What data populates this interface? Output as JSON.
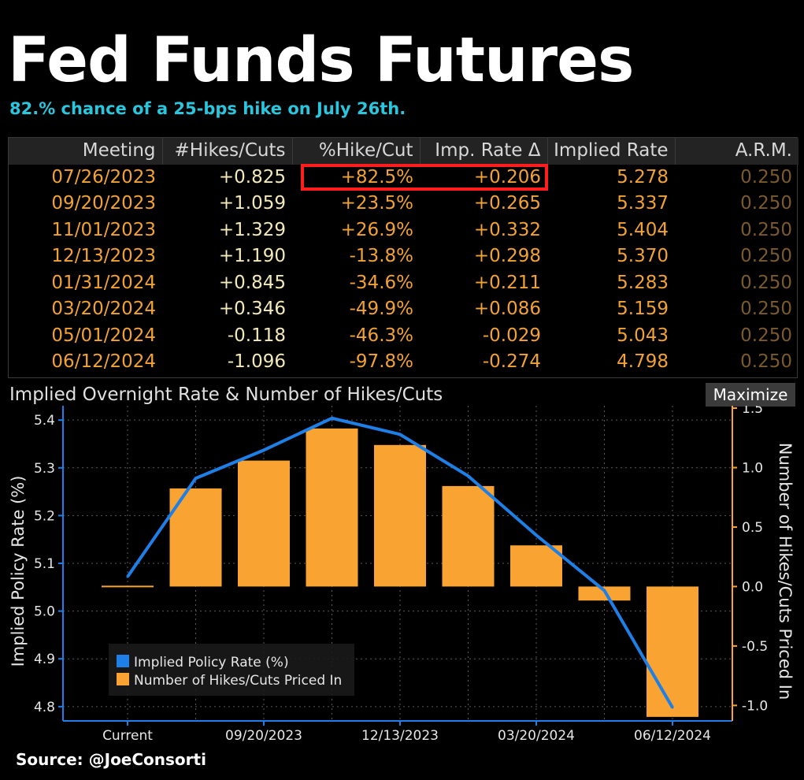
{
  "header": {
    "title": "Fed Funds Futures",
    "subtitle": "82.% chance of a 25-bps hike on July 26th."
  },
  "table": {
    "columns": [
      "Meeting",
      "#Hikes/Cuts",
      "%Hike/Cut",
      "Imp. Rate Δ",
      "Implied Rate",
      "A.R.M."
    ],
    "rows": [
      [
        "07/26/2023",
        "+0.825",
        "+82.5%",
        "+0.206",
        "5.278",
        "0.250"
      ],
      [
        "09/20/2023",
        "+1.059",
        "+23.5%",
        "+0.265",
        "5.337",
        "0.250"
      ],
      [
        "11/01/2023",
        "+1.329",
        "+26.9%",
        "+0.332",
        "5.404",
        "0.250"
      ],
      [
        "12/13/2023",
        "+1.190",
        "-13.8%",
        "+0.298",
        "5.370",
        "0.250"
      ],
      [
        "01/31/2024",
        "+0.845",
        "-34.6%",
        "+0.211",
        "5.283",
        "0.250"
      ],
      [
        "03/20/2024",
        "+0.346",
        "-49.9%",
        "+0.086",
        "5.159",
        "0.250"
      ],
      [
        "05/01/2024",
        "-0.118",
        "-46.3%",
        "-0.029",
        "5.043",
        "0.250"
      ],
      [
        "06/12/2024",
        "-1.096",
        "-97.8%",
        "-0.274",
        "4.798",
        "0.250"
      ]
    ]
  },
  "chart_panel": {
    "title": "Implied Overnight Rate & Number of Hikes/Cuts",
    "maximize_label": "Maximize"
  },
  "chart_data": {
    "type": "bar",
    "categories": [
      "Current",
      "07/26/2023",
      "09/20/2023",
      "11/01/2023",
      "12/13/2023",
      "01/31/2024",
      "03/20/2024",
      "05/01/2024",
      "06/12/2024"
    ],
    "x_tick_labels": [
      "Current",
      "09/20/2023",
      "12/13/2023",
      "03/20/2024",
      "06/12/2024"
    ],
    "series": [
      {
        "name": "Implied Policy Rate (%)",
        "type": "line",
        "axis": "left",
        "color": "#1e7fe6",
        "values": [
          5.072,
          5.278,
          5.337,
          5.404,
          5.37,
          5.283,
          5.159,
          5.043,
          4.798
        ]
      },
      {
        "name": "Number of Hikes/Cuts Priced In",
        "type": "bar",
        "axis": "right",
        "color": "#f9a332",
        "values": [
          0.0,
          0.825,
          1.059,
          1.329,
          1.19,
          0.845,
          0.346,
          -0.118,
          -1.096
        ]
      }
    ],
    "ylabel": "Implied Policy Rate (%)",
    "y2label": "Number of Hikes/Cuts Priced In",
    "ylim": [
      4.77,
      5.43
    ],
    "y2lim": [
      -1.13,
      1.52
    ],
    "yticks": [
      "5.4",
      "5.3",
      "5.2",
      "5.1",
      "5.0",
      "4.9",
      "4.8"
    ],
    "y2ticks": [
      "1.5",
      "1.0",
      "0.5",
      "0.0",
      "-0.5",
      "-1.0"
    ],
    "grid": true,
    "legend_position": "bottom-left"
  },
  "footer": {
    "source": "Source: @JoeConsorti"
  }
}
